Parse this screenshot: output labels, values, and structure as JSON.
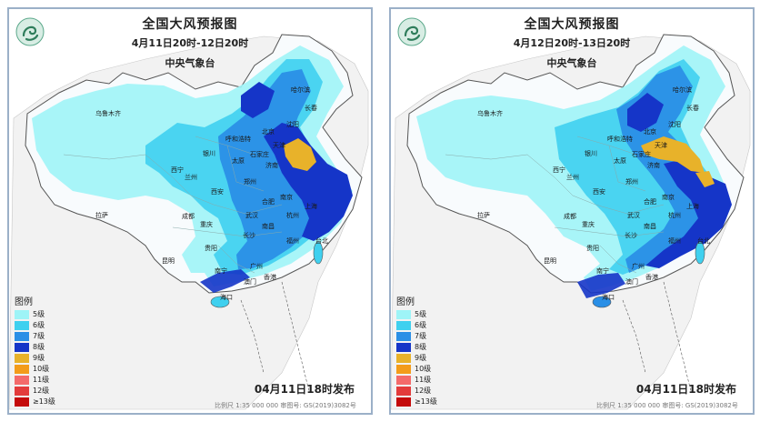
{
  "panels": [
    {
      "title": "全国大风预报图",
      "time_range": "4月11日20时-12日20时",
      "issuer": "中央气象台",
      "issued": "04月11日18时发布",
      "scale": "比例尺 1:35 000 000   审图号: GS(2019)3082号"
    },
    {
      "title": "全国大风预报图",
      "time_range": "4月12日20时-13日20时",
      "issuer": "中央气象台",
      "issued": "04月11日18时发布",
      "scale": "比例尺 1:35 000 000   审图号: GS(2019)3082号"
    }
  ],
  "legend": {
    "title": "图例",
    "items": [
      {
        "label": "5级",
        "color": "#9ef4f7"
      },
      {
        "label": "6级",
        "color": "#3fd0ef"
      },
      {
        "label": "7级",
        "color": "#2a8fe6"
      },
      {
        "label": "8级",
        "color": "#1535c8"
      },
      {
        "label": "9级",
        "color": "#e8b22a"
      },
      {
        "label": "10级",
        "color": "#f39c1a"
      },
      {
        "label": "11级",
        "color": "#f46a6a"
      },
      {
        "label": "12级",
        "color": "#e33b3b"
      },
      {
        "label": "≥13级",
        "color": "#c40a0a"
      }
    ]
  },
  "cities": {
    "urumqi": "乌鲁木齐",
    "harbin": "哈尔滨",
    "changchun": "长春",
    "shenyang": "沈阳",
    "beijing": "北京",
    "tianjin": "天津",
    "hohhot": "呼和浩特",
    "shijiazhuang": "石家庄",
    "taiyuan": "太原",
    "jinan": "济南",
    "yinchuan": "银川",
    "xining": "西宁",
    "lanzhou": "兰州",
    "zhengzhou": "郑州",
    "xian": "西安",
    "nanjing": "南京",
    "hefei": "合肥",
    "shanghai": "上海",
    "hangzhou": "杭州",
    "wuhan": "武汉",
    "chengdu": "成都",
    "chongqing": "重庆",
    "changsha": "长沙",
    "nanchang": "南昌",
    "fuzhou": "福州",
    "taipei": "台北",
    "lhasa": "拉萨",
    "guiyang": "贵阳",
    "kunming": "昆明",
    "nanning": "南宁",
    "guangzhou": "广州",
    "haikou": "海口",
    "hongkong": "香港",
    "macau": "澳门"
  }
}
